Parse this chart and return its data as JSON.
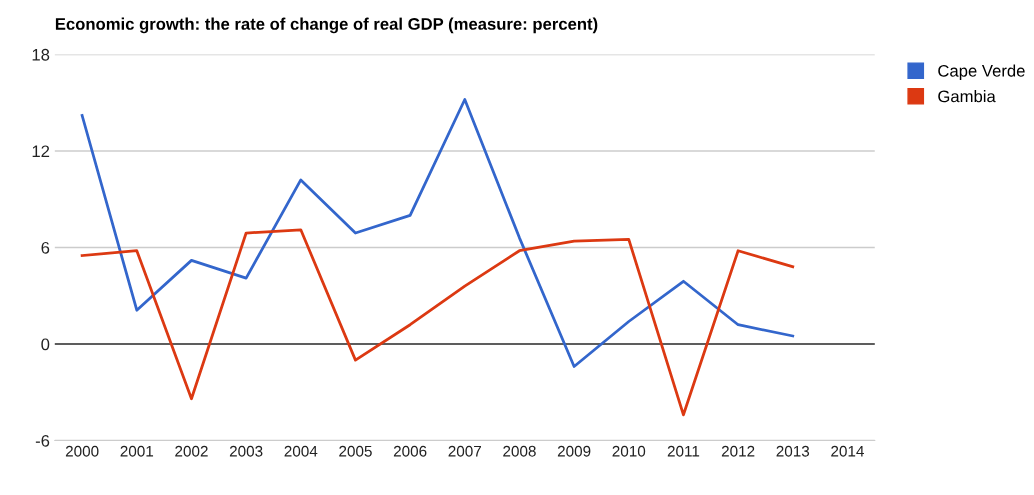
{
  "chart_data": {
    "type": "line",
    "title": "Economic growth: the rate of change of real GDP (measure: percent)",
    "x": [
      2000,
      2001,
      2002,
      2003,
      2004,
      2005,
      2006,
      2007,
      2008,
      2009,
      2010,
      2011,
      2012,
      2013
    ],
    "series": [
      {
        "name": "Cape Verde",
        "color": "#3366cc",
        "values": [
          14.2,
          2.1,
          5.2,
          4.1,
          10.2,
          6.9,
          8.0,
          15.2,
          6.6,
          -1.4,
          1.4,
          3.9,
          1.2,
          0.5
        ]
      },
      {
        "name": "Gambia",
        "color": "#dc3912",
        "values": [
          5.5,
          5.8,
          -3.4,
          6.9,
          7.1,
          -1.0,
          1.2,
          3.6,
          5.8,
          6.4,
          6.5,
          -4.4,
          5.8,
          4.8
        ]
      }
    ],
    "xlim": [
      1999.5,
      2014.5
    ],
    "xticks": [
      2000,
      2001,
      2002,
      2003,
      2004,
      2005,
      2006,
      2007,
      2008,
      2009,
      2010,
      2011,
      2012,
      2013,
      2014
    ],
    "ylim": [
      -6,
      18
    ],
    "yticks": [
      -6,
      0,
      6,
      12,
      18
    ],
    "ref_lines": [
      {
        "axis": "y",
        "value": 0,
        "color": "#333333"
      }
    ],
    "grid": "y",
    "legend": "top right",
    "marker": "none",
    "line_style": "solid"
  }
}
